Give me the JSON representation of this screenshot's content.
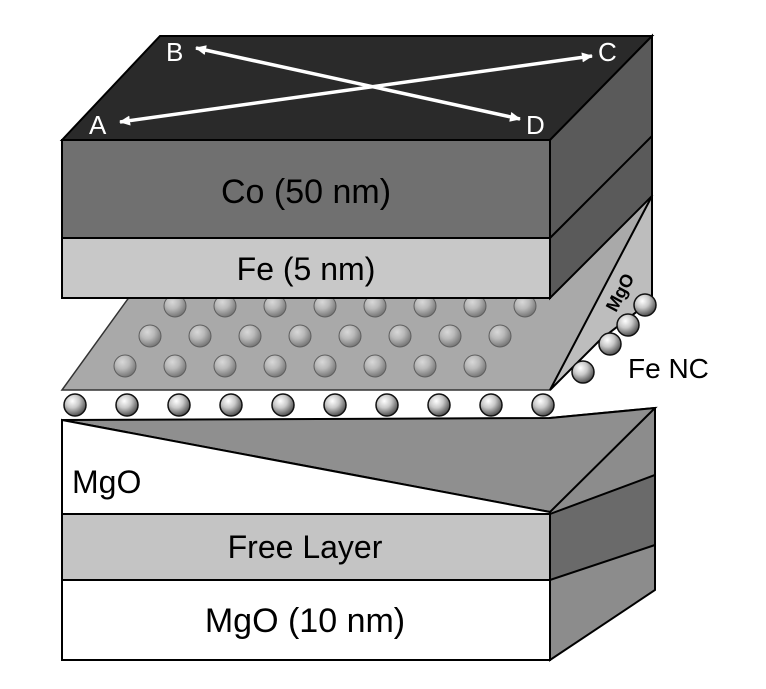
{
  "layers": {
    "cobalt": "Co (50 nm)",
    "iron": "Fe (5 nm)",
    "mgo_barrier": "MgO",
    "free_layer": "Free Layer",
    "mgo_base": "MgO (10 nm)",
    "mgo_side": "MgO"
  },
  "annotations": {
    "nanocrystal": "Fe NC"
  },
  "corners": {
    "a": "A",
    "b": "B",
    "c": "C",
    "d": "D"
  }
}
